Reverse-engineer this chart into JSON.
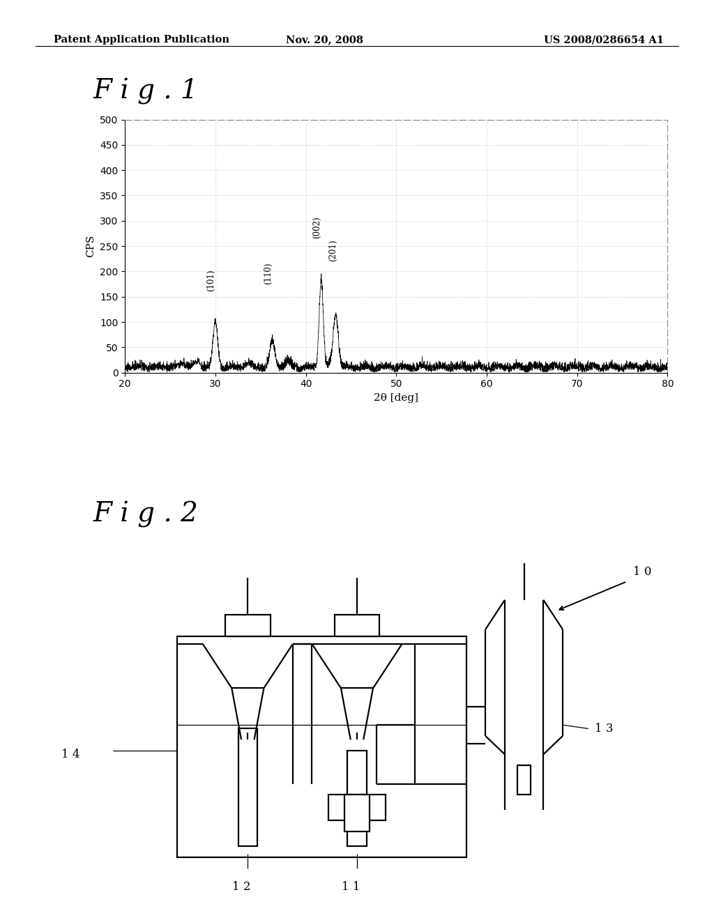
{
  "header_left": "Patent Application Publication",
  "header_center": "Nov. 20, 2008",
  "header_right": "US 2008/0286654 A1",
  "fig1_title": "F i g . 1",
  "fig2_title": "F i g . 2",
  "xrd_xlabel": "2θ [deg]",
  "xrd_ylabel": "CPS",
  "xrd_xlim": [
    20,
    80
  ],
  "xrd_ylim": [
    0,
    500
  ],
  "xrd_yticks": [
    0,
    50,
    100,
    150,
    200,
    250,
    300,
    350,
    400,
    450,
    500
  ],
  "xrd_xticks": [
    20,
    30,
    40,
    50,
    60,
    70,
    80
  ],
  "background_color": "#ffffff",
  "line_color": "#000000",
  "grid_color": "#bbbbbb",
  "label_14": "1 4",
  "label_13": "1 3",
  "label_12": "1 2",
  "label_11": "1 1",
  "label_10": "1 0"
}
